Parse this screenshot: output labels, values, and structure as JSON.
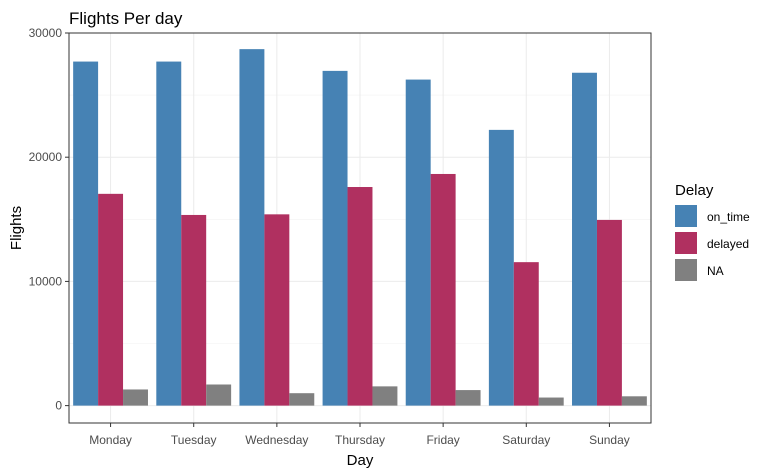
{
  "chart_data": {
    "type": "bar",
    "title": "Flights Per day",
    "xlabel": "Day",
    "ylabel": "Flights",
    "categories": [
      "Monday",
      "Tuesday",
      "Wednesday",
      "Thursday",
      "Friday",
      "Saturday",
      "Sunday"
    ],
    "series": [
      {
        "name": "on_time",
        "color": "#4682b4",
        "values": [
          27700,
          27700,
          28700,
          26950,
          26250,
          22200,
          26800
        ]
      },
      {
        "name": "delayed",
        "color": "#b03060",
        "values": [
          17050,
          15350,
          15400,
          17600,
          18650,
          11550,
          14950
        ]
      },
      {
        "name": "NA",
        "color": "#808080",
        "values": [
          1300,
          1700,
          1000,
          1550,
          1250,
          650,
          750
        ]
      }
    ],
    "ylim": [
      -1400,
      30000
    ],
    "yticks": [
      0,
      10000,
      20000,
      30000
    ],
    "ytick_labels": [
      "0",
      "10000",
      "20000",
      "30000"
    ],
    "grid": true,
    "legend": {
      "title": "Delay",
      "position": "right"
    }
  }
}
